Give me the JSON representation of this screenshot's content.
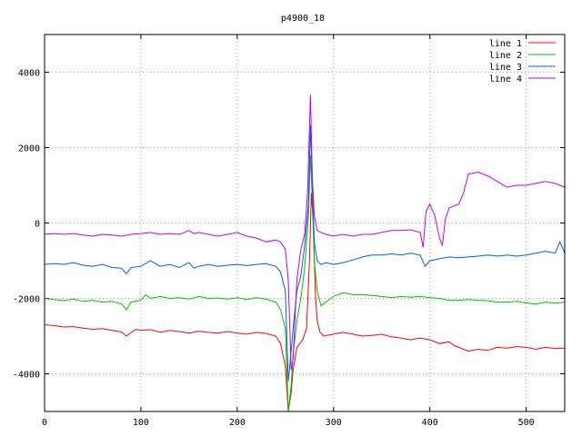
{
  "chart_data": {
    "type": "line",
    "title": "p4900_18",
    "xlabel": "",
    "ylabel": "",
    "xlim": [
      0,
      540
    ],
    "ylim": [
      -5000,
      5000
    ],
    "xticks": [
      0,
      100,
      200,
      300,
      400,
      500
    ],
    "yticks": [
      -4000,
      -2000,
      0,
      2000,
      4000
    ],
    "xtick_labels": [
      "0",
      "100",
      "200",
      "300",
      "400",
      "500"
    ],
    "ytick_labels": [
      "-4000",
      "-2000",
      "0",
      "2000",
      "4000"
    ],
    "grid": true,
    "legend_position": "top-right",
    "series": [
      {
        "name": "line 1",
        "color": "#ff0000",
        "points": [
          [
            0,
            -2700
          ],
          [
            10,
            -2720
          ],
          [
            20,
            -2760
          ],
          [
            30,
            -2750
          ],
          [
            40,
            -2790
          ],
          [
            50,
            -2820
          ],
          [
            60,
            -2800
          ],
          [
            70,
            -2850
          ],
          [
            80,
            -2890
          ],
          [
            85,
            -3000
          ],
          [
            90,
            -2900
          ],
          [
            95,
            -2820
          ],
          [
            100,
            -2850
          ],
          [
            110,
            -2830
          ],
          [
            120,
            -2900
          ],
          [
            130,
            -2850
          ],
          [
            140,
            -2880
          ],
          [
            150,
            -2920
          ],
          [
            160,
            -2870
          ],
          [
            170,
            -2900
          ],
          [
            180,
            -2920
          ],
          [
            190,
            -2880
          ],
          [
            200,
            -2920
          ],
          [
            210,
            -2950
          ],
          [
            220,
            -2900
          ],
          [
            230,
            -2930
          ],
          [
            240,
            -3000
          ],
          [
            245,
            -3200
          ],
          [
            250,
            -3800
          ],
          [
            253,
            -5000
          ],
          [
            256,
            -4500
          ],
          [
            258,
            -3900
          ],
          [
            262,
            -3300
          ],
          [
            268,
            -3100
          ],
          [
            272,
            -2800
          ],
          [
            275,
            -1000
          ],
          [
            277,
            800
          ],
          [
            279,
            0
          ],
          [
            281,
            -1800
          ],
          [
            283,
            -2600
          ],
          [
            286,
            -2900
          ],
          [
            290,
            -3000
          ],
          [
            300,
            -2950
          ],
          [
            310,
            -2900
          ],
          [
            320,
            -2950
          ],
          [
            330,
            -3000
          ],
          [
            340,
            -2980
          ],
          [
            350,
            -2950
          ],
          [
            360,
            -3020
          ],
          [
            370,
            -3050
          ],
          [
            380,
            -3100
          ],
          [
            390,
            -3050
          ],
          [
            400,
            -3100
          ],
          [
            410,
            -3200
          ],
          [
            420,
            -3150
          ],
          [
            425,
            -3250
          ],
          [
            430,
            -3300
          ],
          [
            440,
            -3400
          ],
          [
            450,
            -3350
          ],
          [
            460,
            -3380
          ],
          [
            470,
            -3300
          ],
          [
            480,
            -3320
          ],
          [
            490,
            -3280
          ],
          [
            500,
            -3300
          ],
          [
            510,
            -3350
          ],
          [
            520,
            -3300
          ],
          [
            530,
            -3330
          ],
          [
            540,
            -3320
          ]
        ]
      },
      {
        "name": "line 2",
        "color": "#00c000",
        "points": [
          [
            0,
            -2000
          ],
          [
            10,
            -2030
          ],
          [
            20,
            -2060
          ],
          [
            30,
            -2020
          ],
          [
            40,
            -2080
          ],
          [
            50,
            -2050
          ],
          [
            60,
            -2100
          ],
          [
            70,
            -2080
          ],
          [
            80,
            -2150
          ],
          [
            85,
            -2300
          ],
          [
            90,
            -2100
          ],
          [
            100,
            -2050
          ],
          [
            105,
            -1900
          ],
          [
            110,
            -2000
          ],
          [
            120,
            -1950
          ],
          [
            130,
            -2000
          ],
          [
            140,
            -1980
          ],
          [
            150,
            -2020
          ],
          [
            160,
            -1950
          ],
          [
            170,
            -2000
          ],
          [
            180,
            -1990
          ],
          [
            190,
            -2020
          ],
          [
            200,
            -1980
          ],
          [
            210,
            -2030
          ],
          [
            220,
            -1980
          ],
          [
            230,
            -2020
          ],
          [
            240,
            -2100
          ],
          [
            245,
            -2300
          ],
          [
            250,
            -2800
          ],
          [
            253,
            -5000
          ],
          [
            256,
            -4300
          ],
          [
            258,
            -3500
          ],
          [
            262,
            -2600
          ],
          [
            266,
            -2000
          ],
          [
            270,
            -1200
          ],
          [
            274,
            200
          ],
          [
            276,
            1800
          ],
          [
            278,
            600
          ],
          [
            280,
            -1000
          ],
          [
            283,
            -1800
          ],
          [
            287,
            -2200
          ],
          [
            292,
            -2100
          ],
          [
            300,
            -1950
          ],
          [
            310,
            -1850
          ],
          [
            320,
            -1900
          ],
          [
            330,
            -1900
          ],
          [
            340,
            -1920
          ],
          [
            350,
            -1950
          ],
          [
            360,
            -1980
          ],
          [
            370,
            -1950
          ],
          [
            380,
            -1970
          ],
          [
            390,
            -1950
          ],
          [
            400,
            -1980
          ],
          [
            410,
            -2000
          ],
          [
            420,
            -2050
          ],
          [
            430,
            -2050
          ],
          [
            440,
            -2030
          ],
          [
            450,
            -2050
          ],
          [
            460,
            -2060
          ],
          [
            470,
            -2100
          ],
          [
            480,
            -2100
          ],
          [
            490,
            -2080
          ],
          [
            500,
            -2120
          ],
          [
            510,
            -2150
          ],
          [
            520,
            -2100
          ],
          [
            530,
            -2130
          ],
          [
            540,
            -2100
          ]
        ]
      },
      {
        "name": "line 3",
        "color": "#0060e0",
        "points": [
          [
            0,
            -1100
          ],
          [
            10,
            -1080
          ],
          [
            20,
            -1100
          ],
          [
            30,
            -1050
          ],
          [
            40,
            -1120
          ],
          [
            50,
            -1150
          ],
          [
            60,
            -1100
          ],
          [
            70,
            -1180
          ],
          [
            80,
            -1200
          ],
          [
            85,
            -1350
          ],
          [
            90,
            -1180
          ],
          [
            100,
            -1150
          ],
          [
            110,
            -1000
          ],
          [
            120,
            -1150
          ],
          [
            130,
            -1100
          ],
          [
            140,
            -1180
          ],
          [
            150,
            -1050
          ],
          [
            155,
            -1200
          ],
          [
            160,
            -1150
          ],
          [
            170,
            -1100
          ],
          [
            180,
            -1150
          ],
          [
            190,
            -1120
          ],
          [
            200,
            -1100
          ],
          [
            210,
            -1130
          ],
          [
            220,
            -1100
          ],
          [
            230,
            -1080
          ],
          [
            240,
            -1150
          ],
          [
            245,
            -1300
          ],
          [
            250,
            -1800
          ],
          [
            253,
            -4200
          ],
          [
            256,
            -3400
          ],
          [
            258,
            -2800
          ],
          [
            262,
            -1800
          ],
          [
            266,
            -1400
          ],
          [
            270,
            -600
          ],
          [
            274,
            500
          ],
          [
            276,
            2600
          ],
          [
            278,
            1000
          ],
          [
            280,
            -500
          ],
          [
            283,
            -1000
          ],
          [
            287,
            -1100
          ],
          [
            292,
            -1050
          ],
          [
            300,
            -1100
          ],
          [
            310,
            -1050
          ],
          [
            320,
            -980
          ],
          [
            330,
            -900
          ],
          [
            340,
            -850
          ],
          [
            350,
            -850
          ],
          [
            360,
            -820
          ],
          [
            370,
            -850
          ],
          [
            380,
            -800
          ],
          [
            390,
            -850
          ],
          [
            395,
            -1150
          ],
          [
            400,
            -1000
          ],
          [
            410,
            -950
          ],
          [
            420,
            -900
          ],
          [
            430,
            -920
          ],
          [
            440,
            -900
          ],
          [
            450,
            -880
          ],
          [
            460,
            -850
          ],
          [
            470,
            -880
          ],
          [
            480,
            -850
          ],
          [
            490,
            -880
          ],
          [
            500,
            -850
          ],
          [
            510,
            -800
          ],
          [
            520,
            -750
          ],
          [
            530,
            -800
          ],
          [
            535,
            -500
          ],
          [
            540,
            -800
          ]
        ]
      },
      {
        "name": "line 4",
        "color": "#c000ff",
        "points": [
          [
            0,
            -300
          ],
          [
            10,
            -280
          ],
          [
            20,
            -300
          ],
          [
            30,
            -280
          ],
          [
            40,
            -320
          ],
          [
            50,
            -350
          ],
          [
            60,
            -300
          ],
          [
            70,
            -320
          ],
          [
            80,
            -350
          ],
          [
            90,
            -300
          ],
          [
            100,
            -280
          ],
          [
            110,
            -250
          ],
          [
            120,
            -300
          ],
          [
            130,
            -280
          ],
          [
            140,
            -300
          ],
          [
            150,
            -200
          ],
          [
            155,
            -280
          ],
          [
            160,
            -250
          ],
          [
            170,
            -300
          ],
          [
            180,
            -350
          ],
          [
            190,
            -300
          ],
          [
            200,
            -250
          ],
          [
            210,
            -350
          ],
          [
            220,
            -400
          ],
          [
            230,
            -500
          ],
          [
            240,
            -450
          ],
          [
            245,
            -500
          ],
          [
            250,
            -700
          ],
          [
            253,
            -1500
          ],
          [
            256,
            -3900
          ],
          [
            258,
            -3600
          ],
          [
            262,
            -1500
          ],
          [
            266,
            -700
          ],
          [
            270,
            -300
          ],
          [
            273,
            800
          ],
          [
            276,
            3400
          ],
          [
            278,
            1200
          ],
          [
            280,
            200
          ],
          [
            283,
            -200
          ],
          [
            287,
            -250
          ],
          [
            292,
            -300
          ],
          [
            300,
            -350
          ],
          [
            310,
            -300
          ],
          [
            320,
            -350
          ],
          [
            330,
            -300
          ],
          [
            340,
            -300
          ],
          [
            350,
            -250
          ],
          [
            360,
            -200
          ],
          [
            370,
            -200
          ],
          [
            380,
            -180
          ],
          [
            390,
            -250
          ],
          [
            393,
            -650
          ],
          [
            396,
            300
          ],
          [
            400,
            500
          ],
          [
            405,
            200
          ],
          [
            410,
            -400
          ],
          [
            413,
            -600
          ],
          [
            416,
            100
          ],
          [
            420,
            400
          ],
          [
            430,
            500
          ],
          [
            435,
            800
          ],
          [
            440,
            1300
          ],
          [
            450,
            1350
          ],
          [
            460,
            1250
          ],
          [
            470,
            1100
          ],
          [
            480,
            950
          ],
          [
            490,
            1000
          ],
          [
            500,
            1000
          ],
          [
            510,
            1050
          ],
          [
            520,
            1100
          ],
          [
            530,
            1050
          ],
          [
            540,
            950
          ]
        ]
      }
    ]
  }
}
